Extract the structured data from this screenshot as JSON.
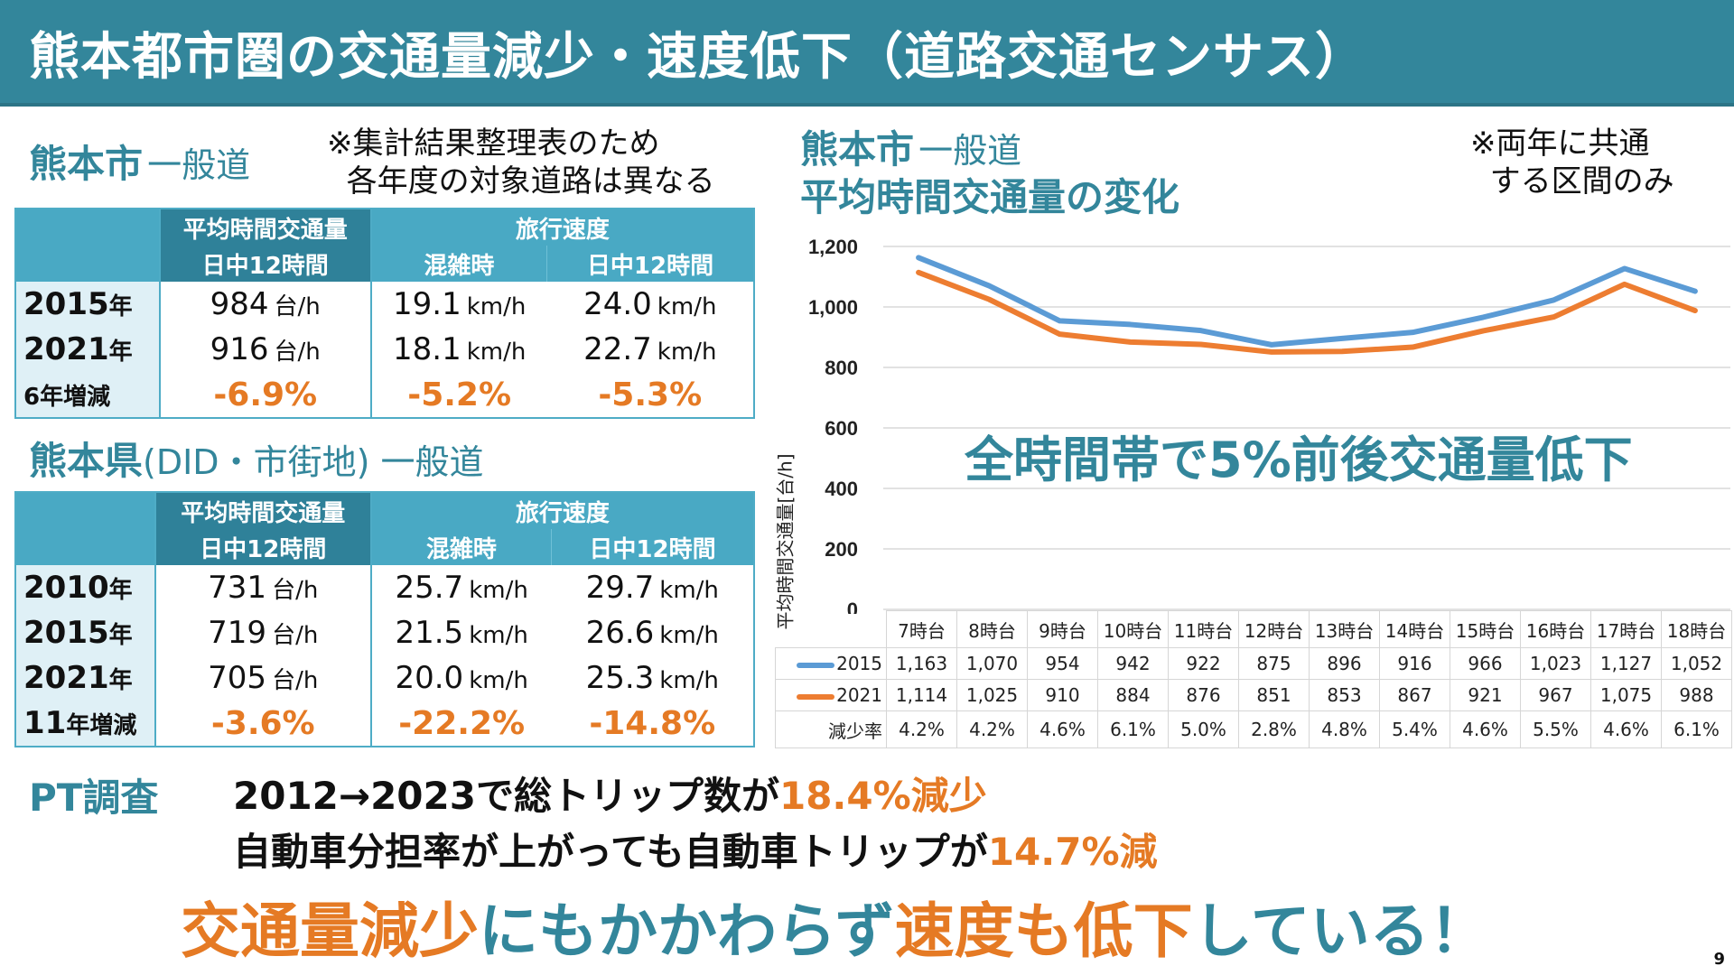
{
  "title": "熊本都市圏の交通量減少・速度低下（道路交通センサス）",
  "colors": {
    "accent": "#33869b",
    "highlight": "#e57a24",
    "series_2015": "#5b9bd5",
    "series_2021": "#ed7d31"
  },
  "city_section": {
    "title_main": "熊本市",
    "title_sub": "一般道",
    "note": "※集計結果整理表のため\n  各年度の対象道路は異なる",
    "table": {
      "header_volume": "平均時間交通量",
      "header_speed": "旅行速度",
      "sub_volume": "日中12時間",
      "sub_congested": "混雑時",
      "sub_daytime": "日中12時間",
      "rows": [
        {
          "label": "2015",
          "label_unit": "年",
          "volume": "984",
          "volume_unit": "台/h",
          "congested": "19.1",
          "daytime": "24.0",
          "speed_unit": "km/h"
        },
        {
          "label": "2021",
          "label_unit": "年",
          "volume": "916",
          "volume_unit": "台/h",
          "congested": "18.1",
          "daytime": "22.7",
          "speed_unit": "km/h"
        }
      ],
      "change": {
        "label": "6年増減",
        "volume": "-6.9%",
        "congested": "-5.2%",
        "daytime": "-5.3%"
      }
    }
  },
  "pref_section": {
    "title_main": "熊本県",
    "title_sub": "(DID・市街地) 一般道",
    "table": {
      "header_volume": "平均時間交通量",
      "header_speed": "旅行速度",
      "sub_volume": "日中12時間",
      "sub_congested": "混雑時",
      "sub_daytime": "日中12時間",
      "rows": [
        {
          "label": "2010",
          "label_unit": "年",
          "volume": "731",
          "volume_unit": "台/h",
          "congested": "25.7",
          "daytime": "29.7",
          "speed_unit": "km/h"
        },
        {
          "label": "2015",
          "label_unit": "年",
          "volume": "719",
          "volume_unit": "台/h",
          "congested": "21.5",
          "daytime": "26.6",
          "speed_unit": "km/h"
        },
        {
          "label": "2021",
          "label_unit": "年",
          "volume": "705",
          "volume_unit": "台/h",
          "congested": "20.0",
          "daytime": "25.3",
          "speed_unit": "km/h"
        }
      ],
      "change": {
        "label_num": "11",
        "label_rest": "年増減",
        "volume": "-3.6%",
        "congested": "-22.2%",
        "daytime": "-14.8%"
      }
    }
  },
  "chart_section": {
    "title_main": "熊本市",
    "title_sub": "一般道",
    "title_line2": "平均時間交通量の変化",
    "note": "※両年に共通\n  する区間のみ",
    "callout": "全時間帯で5%前後交通量低下",
    "reduction_label": "減少率",
    "reduction": [
      "4.2%",
      "4.2%",
      "4.6%",
      "6.1%",
      "5.0%",
      "2.8%",
      "4.8%",
      "5.4%",
      "4.6%",
      "5.5%",
      "4.6%",
      "6.1%"
    ],
    "series_display": [
      [
        "1,163",
        "1,070",
        "954",
        "942",
        "922",
        "875",
        "896",
        "916",
        "966",
        "1,023",
        "1,127",
        "1,052"
      ],
      [
        "1,114",
        "1,025",
        "910",
        "884",
        "876",
        "851",
        "853",
        "867",
        "921",
        "967",
        "1,075",
        "988"
      ]
    ]
  },
  "chart_data": {
    "type": "line",
    "title": "平均時間交通量の変化",
    "xlabel": "",
    "ylabel": "平均時間交通量[台/h]",
    "categories": [
      "7時台",
      "8時台",
      "9時台",
      "10時台",
      "11時台",
      "12時台",
      "13時台",
      "14時台",
      "15時台",
      "16時台",
      "17時台",
      "18時台"
    ],
    "series": [
      {
        "name": "2015",
        "values": [
          1163,
          1070,
          954,
          942,
          922,
          875,
          896,
          916,
          966,
          1023,
          1127,
          1052
        ]
      },
      {
        "name": "2021",
        "values": [
          1114,
          1025,
          910,
          884,
          876,
          851,
          853,
          867,
          921,
          967,
          1075,
          988
        ]
      }
    ],
    "ylim": [
      0,
      1200
    ],
    "yticks": [
      0,
      200,
      400,
      600,
      800,
      1000,
      1200
    ],
    "ytick_labels": [
      "0",
      "200",
      "400",
      "600",
      "800",
      "1,000",
      "1,200"
    ],
    "grid": true,
    "legend": "data-table-left",
    "annotation": "全時間帯で5%前後交通量低下"
  },
  "pt_section": {
    "label": "PT調査",
    "line1_black": "2012→2023で総トリップ数が",
    "line1_orange": "18.4%減少",
    "line2_black": "自動車分担率が上がっても自動車トリップが",
    "line2_orange": "14.7%減"
  },
  "conclusion": {
    "part1": "交通量減少",
    "part2": "にもかかわらず",
    "part3": "速度も低下",
    "part4": "している！"
  },
  "page_number": "9"
}
